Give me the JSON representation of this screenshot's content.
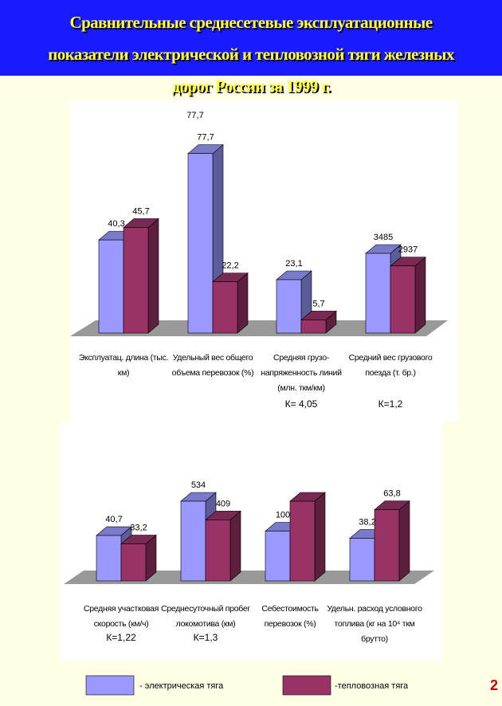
{
  "title": "Сравнительные среднесетевые эксплуатационные показатели электрической и тепловозной тяги железных дорог России за 1999 г.",
  "page_number": "2",
  "chart_data": [
    {
      "type": "bar3d",
      "categories": [
        "Эксплуатац. длина (тыс. км)",
        "Удельный вес общего объема перевозок (%)",
        "Средняя грузо-напряженность линий (млн. ткм/км)",
        "Средний вес грузового поезда (т. бр.)"
      ],
      "series": [
        {
          "name": "- электрическая тяга",
          "color": "#9999ff",
          "values": [
            40.3,
            77.7,
            23.1,
            3485
          ],
          "value_labels": [
            "40,3",
            "77,7",
            "23,1",
            "3485"
          ]
        },
        {
          "name": "-тепловозная тяга",
          "color": "#993366",
          "values": [
            45.7,
            22.2,
            5.7,
            2937
          ],
          "value_labels": [
            "45,7",
            "22,2",
            "5,7",
            "2937"
          ]
        }
      ],
      "ratios": [
        null,
        null,
        "К= 4,05",
        "К=1,2"
      ],
      "annotations": [
        "77,7"
      ]
    },
    {
      "type": "bar3d",
      "categories": [
        "Средняя участковая скорость (км/ч)",
        "Среднесуточный пробег локомотива (км)",
        "Себестоимость перевозок (%)",
        "Удельн. расход условного топлива (кг на 10⁴ ткм брутто)"
      ],
      "series": [
        {
          "name": "- электрическая тяга",
          "color": "#9999ff",
          "values": [
            40.7,
            534,
            100,
            38.2
          ],
          "value_labels": [
            "40,7",
            "534",
            "100",
            "38,2"
          ]
        },
        {
          "name": "-тепловозная тяга",
          "color": "#993366",
          "values": [
            33.2,
            409,
            160,
            63.8
          ],
          "value_labels": [
            "33,2",
            "409",
            null,
            "63,8"
          ]
        }
      ],
      "ratios": [
        "К=1,22",
        "К=1,3",
        null,
        null
      ]
    }
  ]
}
